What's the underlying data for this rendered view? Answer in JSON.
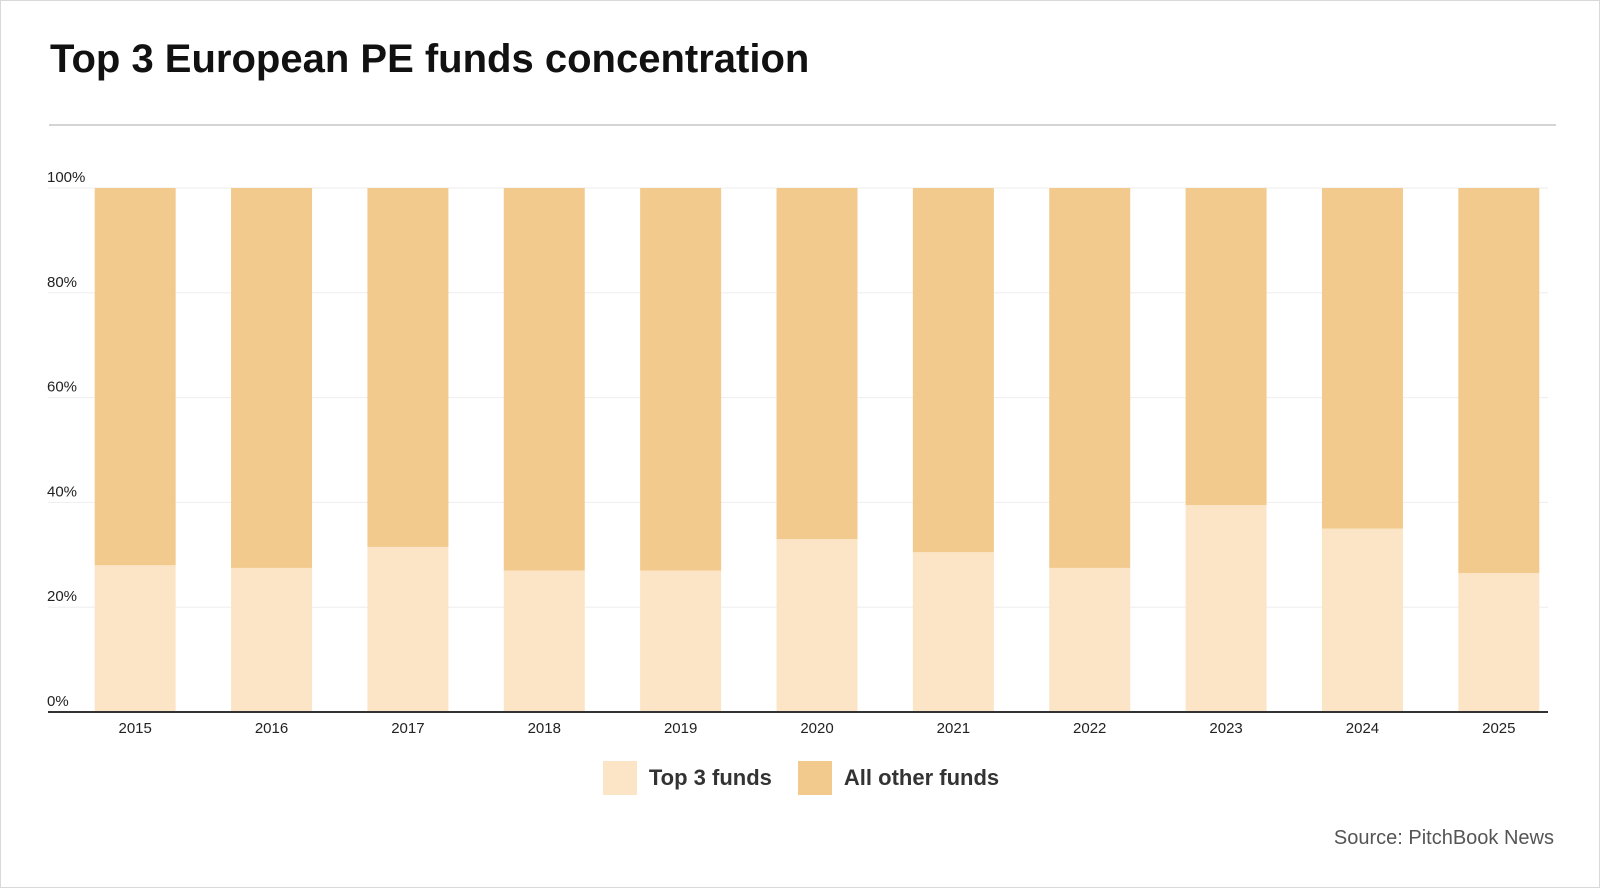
{
  "title": "Top 3 European PE funds concentration",
  "source": "Source: PitchBook News",
  "colors": {
    "top3": "#fce5c6",
    "other": "#f3ca8d",
    "grid": "#eeeeee",
    "axis": "#333333"
  },
  "chart_data": {
    "type": "bar",
    "stacked": true,
    "categories": [
      "2015",
      "2016",
      "2017",
      "2018",
      "2019",
      "2020",
      "2021",
      "2022",
      "2023",
      "2024",
      "2025"
    ],
    "series": [
      {
        "name": "Top 3 funds",
        "values": [
          28,
          27.5,
          31.5,
          27,
          27,
          33,
          30.5,
          27.5,
          39.5,
          35,
          26.5
        ]
      },
      {
        "name": "All other funds",
        "values": [
          72,
          72.5,
          68.5,
          73,
          73,
          67,
          69.5,
          72.5,
          60.5,
          65,
          73.5
        ]
      }
    ],
    "ylim": [
      0,
      100
    ],
    "yticks": [
      "0%",
      "20%",
      "40%",
      "60%",
      "80%",
      "100%"
    ],
    "ytick_values": [
      0,
      20,
      40,
      60,
      80,
      100
    ],
    "grid": true,
    "legend": "bottom-center"
  }
}
